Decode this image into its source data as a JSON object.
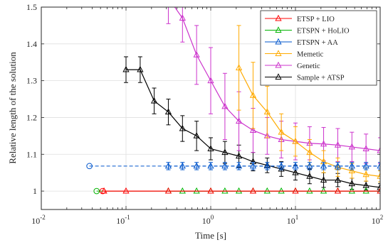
{
  "chart_data": {
    "type": "line",
    "xlabel": "Time [s]",
    "ylabel": "Relative length of the solution",
    "x_scale": "log",
    "xlim": [
      0.01,
      100
    ],
    "ylim": [
      0.95,
      1.5
    ],
    "x_ticks": [
      {
        "value": 0.01,
        "base": "10",
        "exp": "-2"
      },
      {
        "value": 0.1,
        "base": "10",
        "exp": "-1"
      },
      {
        "value": 1,
        "base": "10",
        "exp": "0"
      },
      {
        "value": 10,
        "base": "10",
        "exp": "1"
      },
      {
        "value": 100,
        "base": "10",
        "exp": "2"
      }
    ],
    "y_ticks": [
      {
        "value": 1.0,
        "label": "1"
      },
      {
        "value": 1.1,
        "label": "1.1"
      },
      {
        "value": 1.2,
        "label": "1.2"
      },
      {
        "value": 1.3,
        "label": "1.3"
      },
      {
        "value": 1.4,
        "label": "1.4"
      },
      {
        "value": 1.5,
        "label": "1.5"
      }
    ],
    "grid": true,
    "legend_position": "top-right",
    "series": [
      {
        "name": "ETSP + LIO",
        "color": "#ff0000",
        "marker": "triangle",
        "dashed": false,
        "points": [
          [
            0.055,
            1.0
          ],
          [
            0.1,
            1.0
          ],
          [
            0.316,
            1.0
          ],
          [
            1,
            1.0
          ],
          [
            3.16,
            1.0
          ],
          [
            10,
            1.0
          ],
          [
            31.6,
            1.0
          ],
          [
            100,
            1.0
          ]
        ],
        "errors": [],
        "start_circle": [
          0.053,
          1.0
        ]
      },
      {
        "name": "ETSPN + HoLIO",
        "color": "#00b300",
        "marker": "triangle",
        "dashed": false,
        "points": [
          [
            0.316,
            1.0
          ],
          [
            0.464,
            1.0
          ],
          [
            0.681,
            1.0
          ],
          [
            1.0,
            1.0
          ],
          [
            1.47,
            1.0
          ],
          [
            2.15,
            1.0
          ],
          [
            3.16,
            1.0
          ],
          [
            4.64,
            1.0
          ],
          [
            6.81,
            1.0
          ],
          [
            10,
            1.0
          ],
          [
            14.7,
            1.0
          ],
          [
            21.5,
            1.0
          ],
          [
            31.6,
            1.0
          ],
          [
            46.4,
            1.0
          ],
          [
            68.1,
            1.0
          ],
          [
            100,
            1.0
          ]
        ],
        "errors": [],
        "start_circle": [
          0.045,
          1.0
        ],
        "connect_from": [
          0.045,
          1.0
        ]
      },
      {
        "name": "ETSPN + AA",
        "color": "#0055cc",
        "marker": "triangle",
        "dashed": true,
        "points": [
          [
            0.316,
            1.068
          ],
          [
            0.464,
            1.068
          ],
          [
            0.681,
            1.068
          ],
          [
            1.0,
            1.068
          ],
          [
            1.47,
            1.068
          ],
          [
            2.15,
            1.068
          ],
          [
            3.16,
            1.068
          ],
          [
            4.64,
            1.068
          ],
          [
            6.81,
            1.068
          ],
          [
            10,
            1.068
          ],
          [
            14.7,
            1.068
          ],
          [
            21.5,
            1.068
          ],
          [
            31.6,
            1.068
          ],
          [
            46.4,
            1.068
          ],
          [
            68.1,
            1.068
          ],
          [
            100,
            1.068
          ]
        ],
        "errors": [
          0.01,
          0.01,
          0.01,
          0.01,
          0.01,
          0.01,
          0.01,
          0.01,
          0.01,
          0.01,
          0.01,
          0.01,
          0.01,
          0.01,
          0.01,
          0.01
        ],
        "start_circle": [
          0.037,
          1.068
        ],
        "connect_from": [
          0.037,
          1.068
        ]
      },
      {
        "name": "Memetic",
        "color": "#ffaa00",
        "marker": "triangle",
        "dashed": false,
        "points": [
          [
            2.15,
            1.335
          ],
          [
            3.16,
            1.26
          ],
          [
            4.64,
            1.215
          ],
          [
            6.81,
            1.16
          ],
          [
            10,
            1.135
          ],
          [
            14.7,
            1.105
          ],
          [
            21.5,
            1.08
          ],
          [
            31.6,
            1.065
          ],
          [
            46.4,
            1.055
          ],
          [
            68.1,
            1.045
          ],
          [
            100,
            1.04
          ]
        ],
        "errors": [
          0.115,
          0.09,
          0.07,
          0.05,
          0.04,
          0.035,
          0.03,
          0.025,
          0.02,
          0.018,
          0.015
        ],
        "start_circle": null
      },
      {
        "name": "Genetic",
        "color": "#cc33cc",
        "marker": "triangle",
        "dashed": false,
        "points": [
          [
            0.316,
            1.525
          ],
          [
            0.464,
            1.47
          ],
          [
            0.681,
            1.37
          ],
          [
            1.0,
            1.3
          ],
          [
            1.47,
            1.23
          ],
          [
            2.15,
            1.19
          ],
          [
            3.16,
            1.165
          ],
          [
            4.64,
            1.15
          ],
          [
            6.81,
            1.14
          ],
          [
            10,
            1.135
          ],
          [
            14.7,
            1.13
          ],
          [
            21.5,
            1.128
          ],
          [
            31.6,
            1.125
          ],
          [
            46.4,
            1.12
          ],
          [
            68.1,
            1.115
          ],
          [
            100,
            1.11
          ]
        ],
        "errors": [
          0.07,
          0.065,
          0.08,
          0.09,
          0.09,
          0.08,
          0.06,
          0.05,
          0.05,
          0.05,
          0.045,
          0.045,
          0.045,
          0.04,
          0.04,
          0.035
        ],
        "start_circle": null
      },
      {
        "name": "Sample + ATSP",
        "color": "#000000",
        "marker": "triangle",
        "dashed": false,
        "points": [
          [
            0.1,
            1.33
          ],
          [
            0.147,
            1.33
          ],
          [
            0.215,
            1.245
          ],
          [
            0.316,
            1.215
          ],
          [
            0.464,
            1.17
          ],
          [
            0.681,
            1.15
          ],
          [
            1.0,
            1.115
          ],
          [
            1.47,
            1.105
          ],
          [
            2.15,
            1.095
          ],
          [
            3.16,
            1.08
          ],
          [
            4.64,
            1.07
          ],
          [
            6.81,
            1.06
          ],
          [
            10,
            1.05
          ],
          [
            14.7,
            1.04
          ],
          [
            21.5,
            1.03
          ],
          [
            31.6,
            1.03
          ],
          [
            46.4,
            1.02
          ],
          [
            68.1,
            1.015
          ],
          [
            100,
            1.01
          ]
        ],
        "errors": [
          0.035,
          0.035,
          0.035,
          0.035,
          0.035,
          0.04,
          0.03,
          0.03,
          0.03,
          0.025,
          0.02,
          0.02,
          0.02,
          0.02,
          0.02,
          0.018,
          0.015,
          0.012,
          0.01
        ],
        "start_circle": null
      }
    ]
  }
}
